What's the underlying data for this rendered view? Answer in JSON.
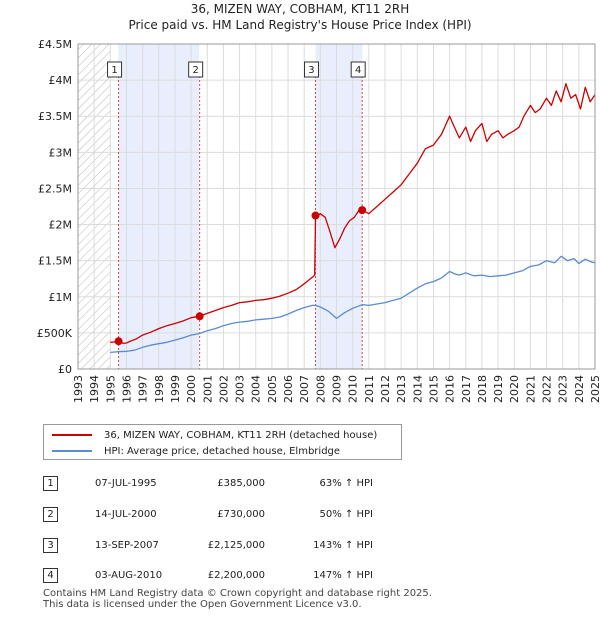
{
  "title": "36, MIZEN WAY, COBHAM, KT11 2RH",
  "subtitle": "Price paid vs. HM Land Registry's House Price Index (HPI)",
  "colors": {
    "property": "#cc0000",
    "hpi": "#5b8bd0",
    "shade": "#e8eefb",
    "grid": "#dcdcdc",
    "marker_line": "#dd4444"
  },
  "chart_data": {
    "type": "line",
    "title": "Price paid vs. HM Land Registry's House Price Index (HPI)",
    "xlabel": "",
    "ylabel": "",
    "xlim": [
      1993,
      2025
    ],
    "ylim": [
      0,
      4500000
    ],
    "y_ticks": [
      0,
      500000,
      1000000,
      1500000,
      2000000,
      2500000,
      3000000,
      3500000,
      4000000,
      4500000
    ],
    "y_tick_labels": [
      "£0",
      "£500K",
      "£1M",
      "£1.5M",
      "£2M",
      "£2.5M",
      "£3M",
      "£3.5M",
      "£4M",
      "£4.5M"
    ],
    "x_ticks": [
      1993,
      1994,
      1995,
      1996,
      1997,
      1998,
      1999,
      2000,
      2001,
      2002,
      2003,
      2004,
      2005,
      2006,
      2007,
      2008,
      2009,
      2010,
      2011,
      2012,
      2013,
      2014,
      2015,
      2016,
      2017,
      2018,
      2019,
      2020,
      2021,
      2022,
      2023,
      2024,
      2025
    ],
    "grid": true,
    "hatched_range": [
      1993,
      1995
    ],
    "shaded_ranges": [
      [
        1995.5,
        2000.5
      ],
      [
        2007.7,
        2010.6
      ]
    ],
    "series": [
      {
        "name": "36, MIZEN WAY, COBHAM, KT11 2RH (detached house)",
        "color": "#cc0000",
        "x": [
          1995.0,
          1995.3,
          1995.5,
          1995.8,
          1996.0,
          1996.3,
          1996.6,
          1997.0,
          1997.5,
          1998.0,
          1998.5,
          1999.0,
          1999.5,
          2000.0,
          2000.5,
          2001.0,
          2001.5,
          2002.0,
          2002.5,
          2003.0,
          2003.5,
          2004.0,
          2004.5,
          2005.0,
          2005.5,
          2006.0,
          2006.5,
          2007.0,
          2007.5,
          2007.65,
          2007.7,
          2008.0,
          2008.3,
          2008.6,
          2008.9,
          2009.2,
          2009.5,
          2009.8,
          2010.1,
          2010.4,
          2010.6,
          2011.0,
          2011.5,
          2012.0,
          2012.5,
          2013.0,
          2013.5,
          2014.0,
          2014.5,
          2015.0,
          2015.5,
          2016.0,
          2016.3,
          2016.6,
          2017.0,
          2017.3,
          2017.6,
          2018.0,
          2018.3,
          2018.6,
          2019.0,
          2019.3,
          2019.6,
          2020.0,
          2020.3,
          2020.6,
          2021.0,
          2021.3,
          2021.6,
          2022.0,
          2022.3,
          2022.6,
          2022.9,
          2023.2,
          2023.5,
          2023.8,
          2024.1,
          2024.4,
          2024.7,
          2025.0
        ],
        "values": [
          370000,
          375000,
          385000,
          355000,
          360000,
          390000,
          415000,
          470000,
          510000,
          560000,
          600000,
          630000,
          665000,
          710000,
          730000,
          770000,
          810000,
          850000,
          880000,
          920000,
          930000,
          950000,
          960000,
          980000,
          1010000,
          1050000,
          1100000,
          1180000,
          1270000,
          1300000,
          2100000,
          2150000,
          2100000,
          1900000,
          1680000,
          1800000,
          1950000,
          2050000,
          2100000,
          2200000,
          2200000,
          2150000,
          2250000,
          2350000,
          2450000,
          2550000,
          2700000,
          2850000,
          3050000,
          3100000,
          3250000,
          3500000,
          3350000,
          3200000,
          3350000,
          3150000,
          3300000,
          3400000,
          3150000,
          3250000,
          3300000,
          3200000,
          3250000,
          3300000,
          3350000,
          3500000,
          3650000,
          3550000,
          3600000,
          3750000,
          3650000,
          3850000,
          3700000,
          3950000,
          3750000,
          3800000,
          3600000,
          3900000,
          3700000,
          3800000
        ]
      },
      {
        "name": "HPI: Average price, detached house, Elmbridge",
        "color": "#5b8bd0",
        "x": [
          1995.0,
          1995.5,
          1996.0,
          1996.5,
          1997.0,
          1997.5,
          1998.0,
          1998.5,
          1999.0,
          1999.5,
          2000.0,
          2000.5,
          2001.0,
          2001.5,
          2002.0,
          2002.5,
          2003.0,
          2003.5,
          2004.0,
          2004.5,
          2005.0,
          2005.5,
          2006.0,
          2006.5,
          2007.0,
          2007.5,
          2007.7,
          2008.0,
          2008.5,
          2009.0,
          2009.5,
          2010.0,
          2010.6,
          2011.0,
          2011.5,
          2012.0,
          2012.5,
          2013.0,
          2013.5,
          2014.0,
          2014.5,
          2015.0,
          2015.5,
          2016.0,
          2016.3,
          2016.6,
          2017.0,
          2017.5,
          2018.0,
          2018.5,
          2019.0,
          2019.5,
          2020.0,
          2020.5,
          2021.0,
          2021.5,
          2022.0,
          2022.5,
          2022.9,
          2023.3,
          2023.7,
          2024.0,
          2024.4,
          2024.8,
          2025.0
        ],
        "values": [
          230000,
          240000,
          245000,
          260000,
          300000,
          330000,
          350000,
          370000,
          400000,
          430000,
          470000,
          490000,
          530000,
          560000,
          600000,
          630000,
          650000,
          660000,
          680000,
          690000,
          700000,
          720000,
          760000,
          810000,
          850000,
          880000,
          880000,
          860000,
          800000,
          700000,
          780000,
          840000,
          890000,
          880000,
          900000,
          920000,
          950000,
          980000,
          1050000,
          1120000,
          1180000,
          1210000,
          1260000,
          1350000,
          1320000,
          1300000,
          1330000,
          1290000,
          1300000,
          1280000,
          1290000,
          1300000,
          1330000,
          1360000,
          1420000,
          1440000,
          1500000,
          1470000,
          1560000,
          1500000,
          1530000,
          1460000,
          1520000,
          1480000,
          1470000
        ]
      }
    ],
    "sale_markers": [
      {
        "label": "1",
        "x": 1995.51,
        "value": 385000
      },
      {
        "label": "2",
        "x": 2000.53,
        "value": 730000
      },
      {
        "label": "3",
        "x": 2007.7,
        "value": 2125000
      },
      {
        "label": "4",
        "x": 2010.59,
        "value": 2200000
      }
    ]
  },
  "legend": {
    "items": [
      {
        "label": "36, MIZEN WAY, COBHAM, KT11 2RH (detached house)"
      },
      {
        "label": "HPI: Average price, detached house, Elmbridge"
      }
    ]
  },
  "table": {
    "rows": [
      {
        "num": "1",
        "date": "07-JUL-1995",
        "price": "£385,000",
        "hpi": "63% ↑ HPI"
      },
      {
        "num": "2",
        "date": "14-JUL-2000",
        "price": "£730,000",
        "hpi": "50% ↑ HPI"
      },
      {
        "num": "3",
        "date": "13-SEP-2007",
        "price": "£2,125,000",
        "hpi": "143% ↑ HPI"
      },
      {
        "num": "4",
        "date": "03-AUG-2010",
        "price": "£2,200,000",
        "hpi": "147% ↑ HPI"
      }
    ]
  },
  "footer": {
    "line1": "Contains HM Land Registry data © Crown copyright and database right 2025.",
    "line2": "This data is licensed under the Open Government Licence v3.0."
  }
}
